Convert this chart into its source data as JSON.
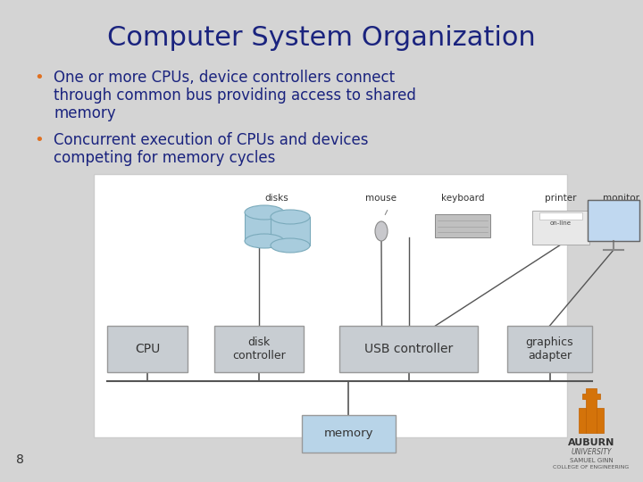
{
  "title": "Computer System Organization",
  "title_color": "#1A237E",
  "title_fontsize": 22,
  "bullet_color": "#E07020",
  "text_color": "#1A237E",
  "text_fontsize": 12,
  "bullet1_line1": "One or more CPUs, device controllers connect",
  "bullet1_line2": "through common bus providing access to shared",
  "bullet1_line3": "memory",
  "bullet2_line1": "Concurrent execution of CPUs and devices",
  "bullet2_line2": "competing for memory cycles",
  "page_number": "8",
  "bg_color": "#D4D4D4",
  "box_fill": "#C8CDD2",
  "box_edge": "#999999",
  "memory_fill": "#B8D4E8",
  "memory_edge": "#999999",
  "diag_bg": "#FFFFFF",
  "diag_edge": "#CCCCCC",
  "line_color": "#555555",
  "text_dark": "#333333"
}
